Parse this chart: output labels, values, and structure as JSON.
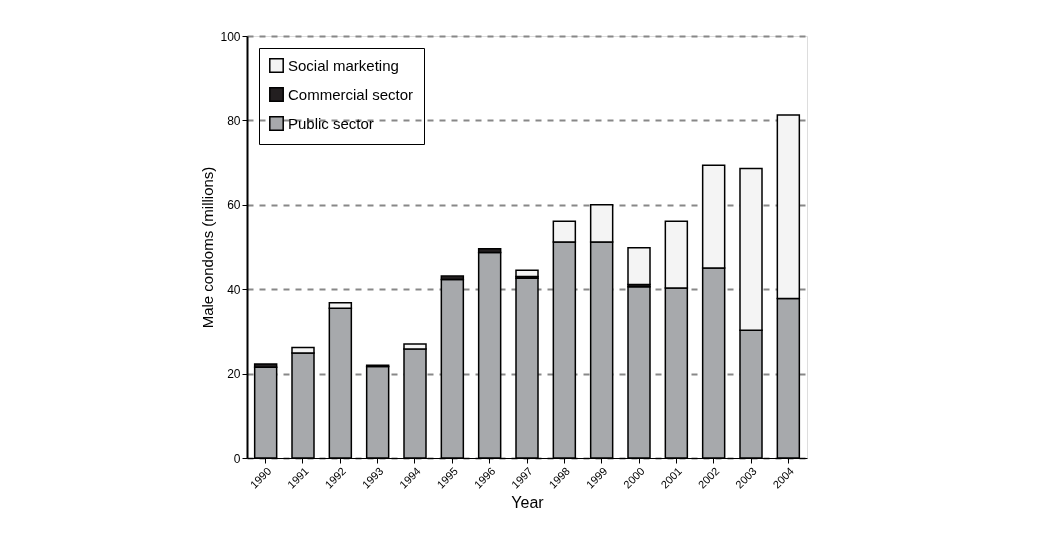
{
  "chart_data": {
    "type": "bar",
    "stacked": true,
    "xlabel": "Year",
    "ylabel": "Male condoms (millions)",
    "categories": [
      "1990",
      "1991",
      "1992",
      "1993",
      "1994",
      "1995",
      "1996",
      "1997",
      "1998",
      "1999",
      "2000",
      "2001",
      "2002",
      "2003",
      "2004"
    ],
    "series": [
      {
        "name": "Public sector",
        "color": "#a7a9ac",
        "values": [
          21.5,
          24.9,
          35.5,
          21.7,
          25.8,
          42.3,
          48.7,
          42.6,
          51.2,
          51.2,
          40.6,
          40.3,
          45.0,
          30.3,
          37.8
        ]
      },
      {
        "name": "Commercial sector",
        "color": "#231f20",
        "values": [
          0.8,
          0,
          0,
          0.3,
          0,
          0.8,
          0.9,
          0.4,
          0,
          0,
          0.5,
          0,
          0,
          0,
          0
        ]
      },
      {
        "name": "Social marketing",
        "color": "#f4f4f4",
        "values": [
          0,
          1.3,
          1.3,
          0,
          1.2,
          0,
          0,
          1.5,
          4.9,
          8.8,
          8.7,
          15.8,
          24.4,
          38.3,
          43.5
        ]
      }
    ],
    "ylim": [
      0,
      100
    ],
    "yticks": [
      0,
      20,
      40,
      60,
      80,
      100
    ],
    "grid": "y",
    "legend": "top left"
  }
}
